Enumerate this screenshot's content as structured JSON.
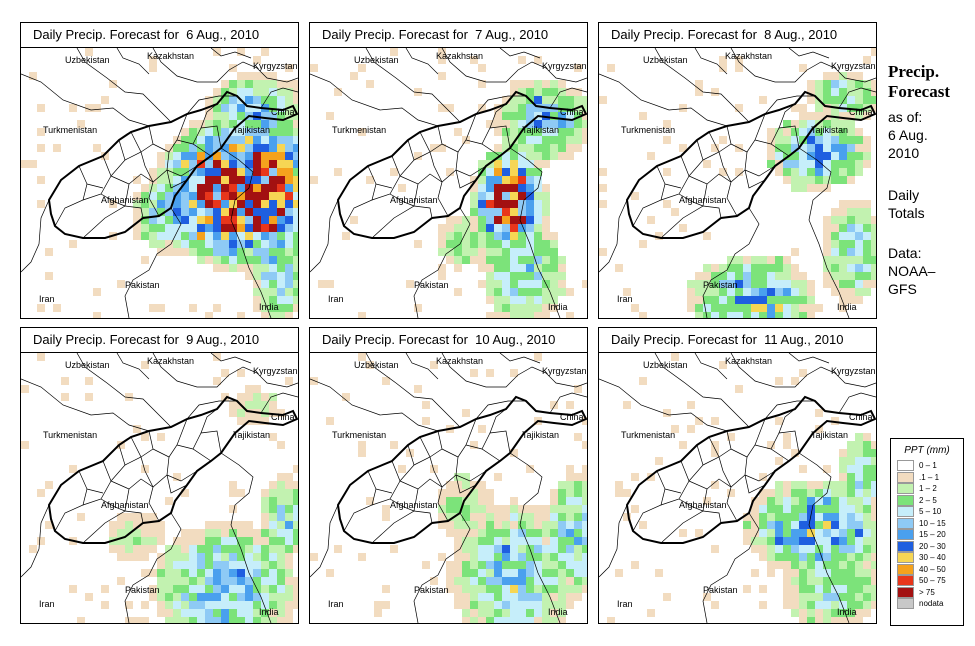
{
  "panels": [
    {
      "title": "Daily Precip. Forecast for  6 Aug., 2010",
      "intensity": "very-high",
      "focus": "east"
    },
    {
      "title": "Daily Precip. Forecast for  7 Aug., 2010",
      "intensity": "high",
      "focus": "northeast"
    },
    {
      "title": "Daily Precip. Forecast for  8 Aug., 2010",
      "intensity": "moderate",
      "focus": "southeast"
    },
    {
      "title": "Daily Precip. Forecast for  9 Aug., 2010",
      "intensity": "low",
      "focus": "southeast"
    },
    {
      "title": "Daily Precip. Forecast for  10 Aug., 2010",
      "intensity": "low",
      "focus": "southeast"
    },
    {
      "title": "Daily Precip. Forecast for  11 Aug., 2010",
      "intensity": "low",
      "focus": "southeast"
    }
  ],
  "countries": {
    "uzbekistan": "Uzbekistan",
    "kazakhstan": "Kazakhstan",
    "kyrgyzstan": "Kyrgyzstan",
    "china": "China",
    "turkmenistan": "Turkmenistan",
    "tajikistan": "Tajikistan",
    "afghanistan": "Afghanistan",
    "pakistan": "Pakistan",
    "iran": "Iran",
    "india": "India"
  },
  "side": {
    "title_line1": "Precip.",
    "title_line2": "Forecast",
    "asof_line1": "as of:",
    "asof_line2": "6 Aug.",
    "asof_line3": "2010",
    "totals_line1": "Daily",
    "totals_line2": "Totals",
    "data_line1": "Data:",
    "data_line2": "NOAA–",
    "data_line3": "GFS"
  },
  "legend": {
    "title": "PPT (mm)",
    "items": [
      {
        "label": "0 – 1",
        "color": "#ffffff"
      },
      {
        "label": ".1 – 1",
        "color": "#f2dcc0"
      },
      {
        "label": "1 – 2",
        "color": "#c2f2b0"
      },
      {
        "label": "2 – 5",
        "color": "#7ce37a"
      },
      {
        "label": "5 – 10",
        "color": "#c6eefa"
      },
      {
        "label": "10 – 15",
        "color": "#8ecaf5"
      },
      {
        "label": "15 – 20",
        "color": "#4aa0ee"
      },
      {
        "label": "20 – 30",
        "color": "#1f5fe0"
      },
      {
        "label": "30 – 40",
        "color": "#f6d654"
      },
      {
        "label": "40 – 50",
        "color": "#f5a21d"
      },
      {
        "label": "50 – 75",
        "color": "#e8361b"
      },
      {
        "label": "> 75",
        "color": "#a31111"
      },
      {
        "label": "nodata",
        "color": "#c8c8c8"
      }
    ]
  }
}
